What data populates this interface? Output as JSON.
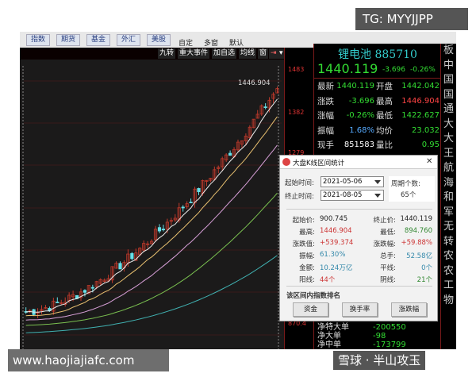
{
  "toolbar": {
    "buttons": [
      "指数",
      "期货",
      "基金",
      "外汇",
      "美股"
    ],
    "labels": [
      "自定",
      "多窗",
      "默认"
    ]
  },
  "chart_toolbar": [
    "九转",
    "重大事件",
    "加自选",
    "均线",
    "窗",
    "⇥",
    "▾"
  ],
  "chart": {
    "high_label": "1446.904",
    "axis_ticks": [
      "1483",
      "1382",
      "1279",
      "870.4"
    ]
  },
  "quote": {
    "name": "锂电池 885710",
    "price": "1440.119",
    "change": "-3.696",
    "change_pct": "-0.26%",
    "rows": [
      {
        "l1": "最新",
        "v1": "1440.119",
        "l2": "开盘",
        "v2": "1442.042",
        "c1": "#33dd33",
        "c2": "#33dd33"
      },
      {
        "l1": "涨跌",
        "v1": "-3.696",
        "l2": "最高",
        "v2": "1446.904",
        "c1": "#33dd33",
        "c2": "#ff4444"
      },
      {
        "l1": "涨幅",
        "v1": "-0.26%",
        "l2": "最低",
        "v2": "1422.627",
        "c1": "#33dd33",
        "c2": "#33dd33"
      },
      {
        "l1": "振幅",
        "v1": "1.68%",
        "l2": "均价",
        "v2": "23.032",
        "c1": "#55aaff",
        "c2": "#33dd33"
      },
      {
        "l1": "现手",
        "v1": "851583",
        "l2": "量比",
        "v2": "0.95",
        "c1": "#ffffff",
        "c2": "#33dd33"
      }
    ],
    "flows": [
      {
        "l": "净特大单",
        "v": "-200550"
      },
      {
        "l": "净大单",
        "v": "-98"
      },
      {
        "l": "净中单",
        "v": "-173799"
      }
    ]
  },
  "right_column": [
    "板",
    "中",
    "国",
    "国",
    "通",
    "大",
    "大",
    "王",
    "航",
    "海",
    "和",
    "军",
    "无",
    "转",
    "农",
    "农",
    "工",
    "物"
  ],
  "dialog": {
    "title": "大盘K线区间统计",
    "close": "✕",
    "start_label": "起始时间:",
    "start_value": "2021-05-06",
    "end_label": "终止时间:",
    "end_value": "2021-08-05",
    "period_label": "周期个数:",
    "period_value": "65个",
    "stats": [
      {
        "l1": "起始价:",
        "v1": "900.745",
        "c1": "#222222",
        "l2": "终止价:",
        "v2": "1440.119",
        "c2": "#222222"
      },
      {
        "l1": "最高:",
        "v1": "1446.904",
        "c1": "#cc3333",
        "l2": "最低:",
        "v2": "894.760",
        "c2": "#338833"
      },
      {
        "l1": "涨跌值:",
        "v1": "+539.374",
        "c1": "#cc3333",
        "l2": "涨跌幅:",
        "v2": "+59.88%",
        "c2": "#cc3333"
      },
      {
        "l1": "振幅:",
        "v1": "61.30%",
        "c1": "#3388aa",
        "l2": "总手:",
        "v2": "52.58亿",
        "c2": "#3388aa"
      },
      {
        "l1": "金额:",
        "v1": "10.24万亿",
        "c1": "#3388aa",
        "l2": "平线:",
        "v2": "0个",
        "c2": "#3388aa"
      },
      {
        "l1": "阳线:",
        "v1": "44个",
        "c1": "#cc3333",
        "l2": "阴线:",
        "v2": "21个",
        "c2": "#338833"
      }
    ],
    "ranking_label": "该区间内指数排名",
    "buttons": [
      "资金",
      "换手率",
      "涨跌幅"
    ]
  },
  "watermarks": {
    "tg": "TG: MYYJJPP",
    "site": "www.haojiajiafc.com",
    "xueqiu": "雪球 · 半山攻玉"
  }
}
